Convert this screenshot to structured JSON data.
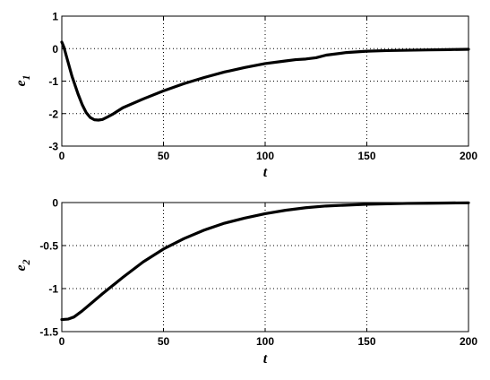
{
  "chart_data": [
    {
      "type": "line",
      "ylabel_main": "e",
      "ylabel_sub": "1",
      "xlabel": "t",
      "xlim": [
        0,
        200
      ],
      "ylim": [
        -3,
        1
      ],
      "xticks": [
        0,
        50,
        100,
        150,
        200
      ],
      "yticks": [
        1,
        0,
        -1,
        -2,
        -3
      ],
      "grid": true,
      "series": [
        {
          "color": "#000000",
          "x": [
            0,
            1,
            3,
            5,
            8,
            10,
            12,
            14,
            16,
            18,
            20,
            22,
            25,
            30,
            40,
            50,
            60,
            70,
            80,
            90,
            100,
            110,
            115,
            120,
            125,
            130,
            140,
            150,
            160,
            170,
            180,
            190,
            200
          ],
          "y": [
            0.2,
            0.05,
            -0.4,
            -0.85,
            -1.4,
            -1.72,
            -1.97,
            -2.12,
            -2.19,
            -2.2,
            -2.18,
            -2.12,
            -2.02,
            -1.82,
            -1.55,
            -1.3,
            -1.08,
            -0.89,
            -0.72,
            -0.58,
            -0.46,
            -0.38,
            -0.34,
            -0.32,
            -0.28,
            -0.2,
            -0.12,
            -0.08,
            -0.06,
            -0.05,
            -0.04,
            -0.03,
            -0.02
          ]
        }
      ]
    },
    {
      "type": "line",
      "ylabel_main": "e",
      "ylabel_sub": "2",
      "xlabel": "t",
      "xlim": [
        0,
        200
      ],
      "ylim": [
        -1.5,
        0
      ],
      "xticks": [
        0,
        50,
        100,
        150,
        200
      ],
      "yticks": [
        0,
        -0.5,
        -1,
        -1.5
      ],
      "grid": true,
      "series": [
        {
          "color": "#000000",
          "x": [
            0,
            3,
            6,
            10,
            15,
            20,
            30,
            40,
            50,
            60,
            70,
            80,
            90,
            100,
            110,
            120,
            130,
            140,
            150,
            160,
            170,
            180,
            190,
            200
          ],
          "y": [
            -1.36,
            -1.355,
            -1.33,
            -1.26,
            -1.16,
            -1.06,
            -0.87,
            -0.69,
            -0.54,
            -0.42,
            -0.32,
            -0.24,
            -0.18,
            -0.13,
            -0.09,
            -0.06,
            -0.04,
            -0.03,
            -0.02,
            -0.015,
            -0.01,
            -0.008,
            -0.005,
            -0.003
          ]
        }
      ]
    }
  ]
}
